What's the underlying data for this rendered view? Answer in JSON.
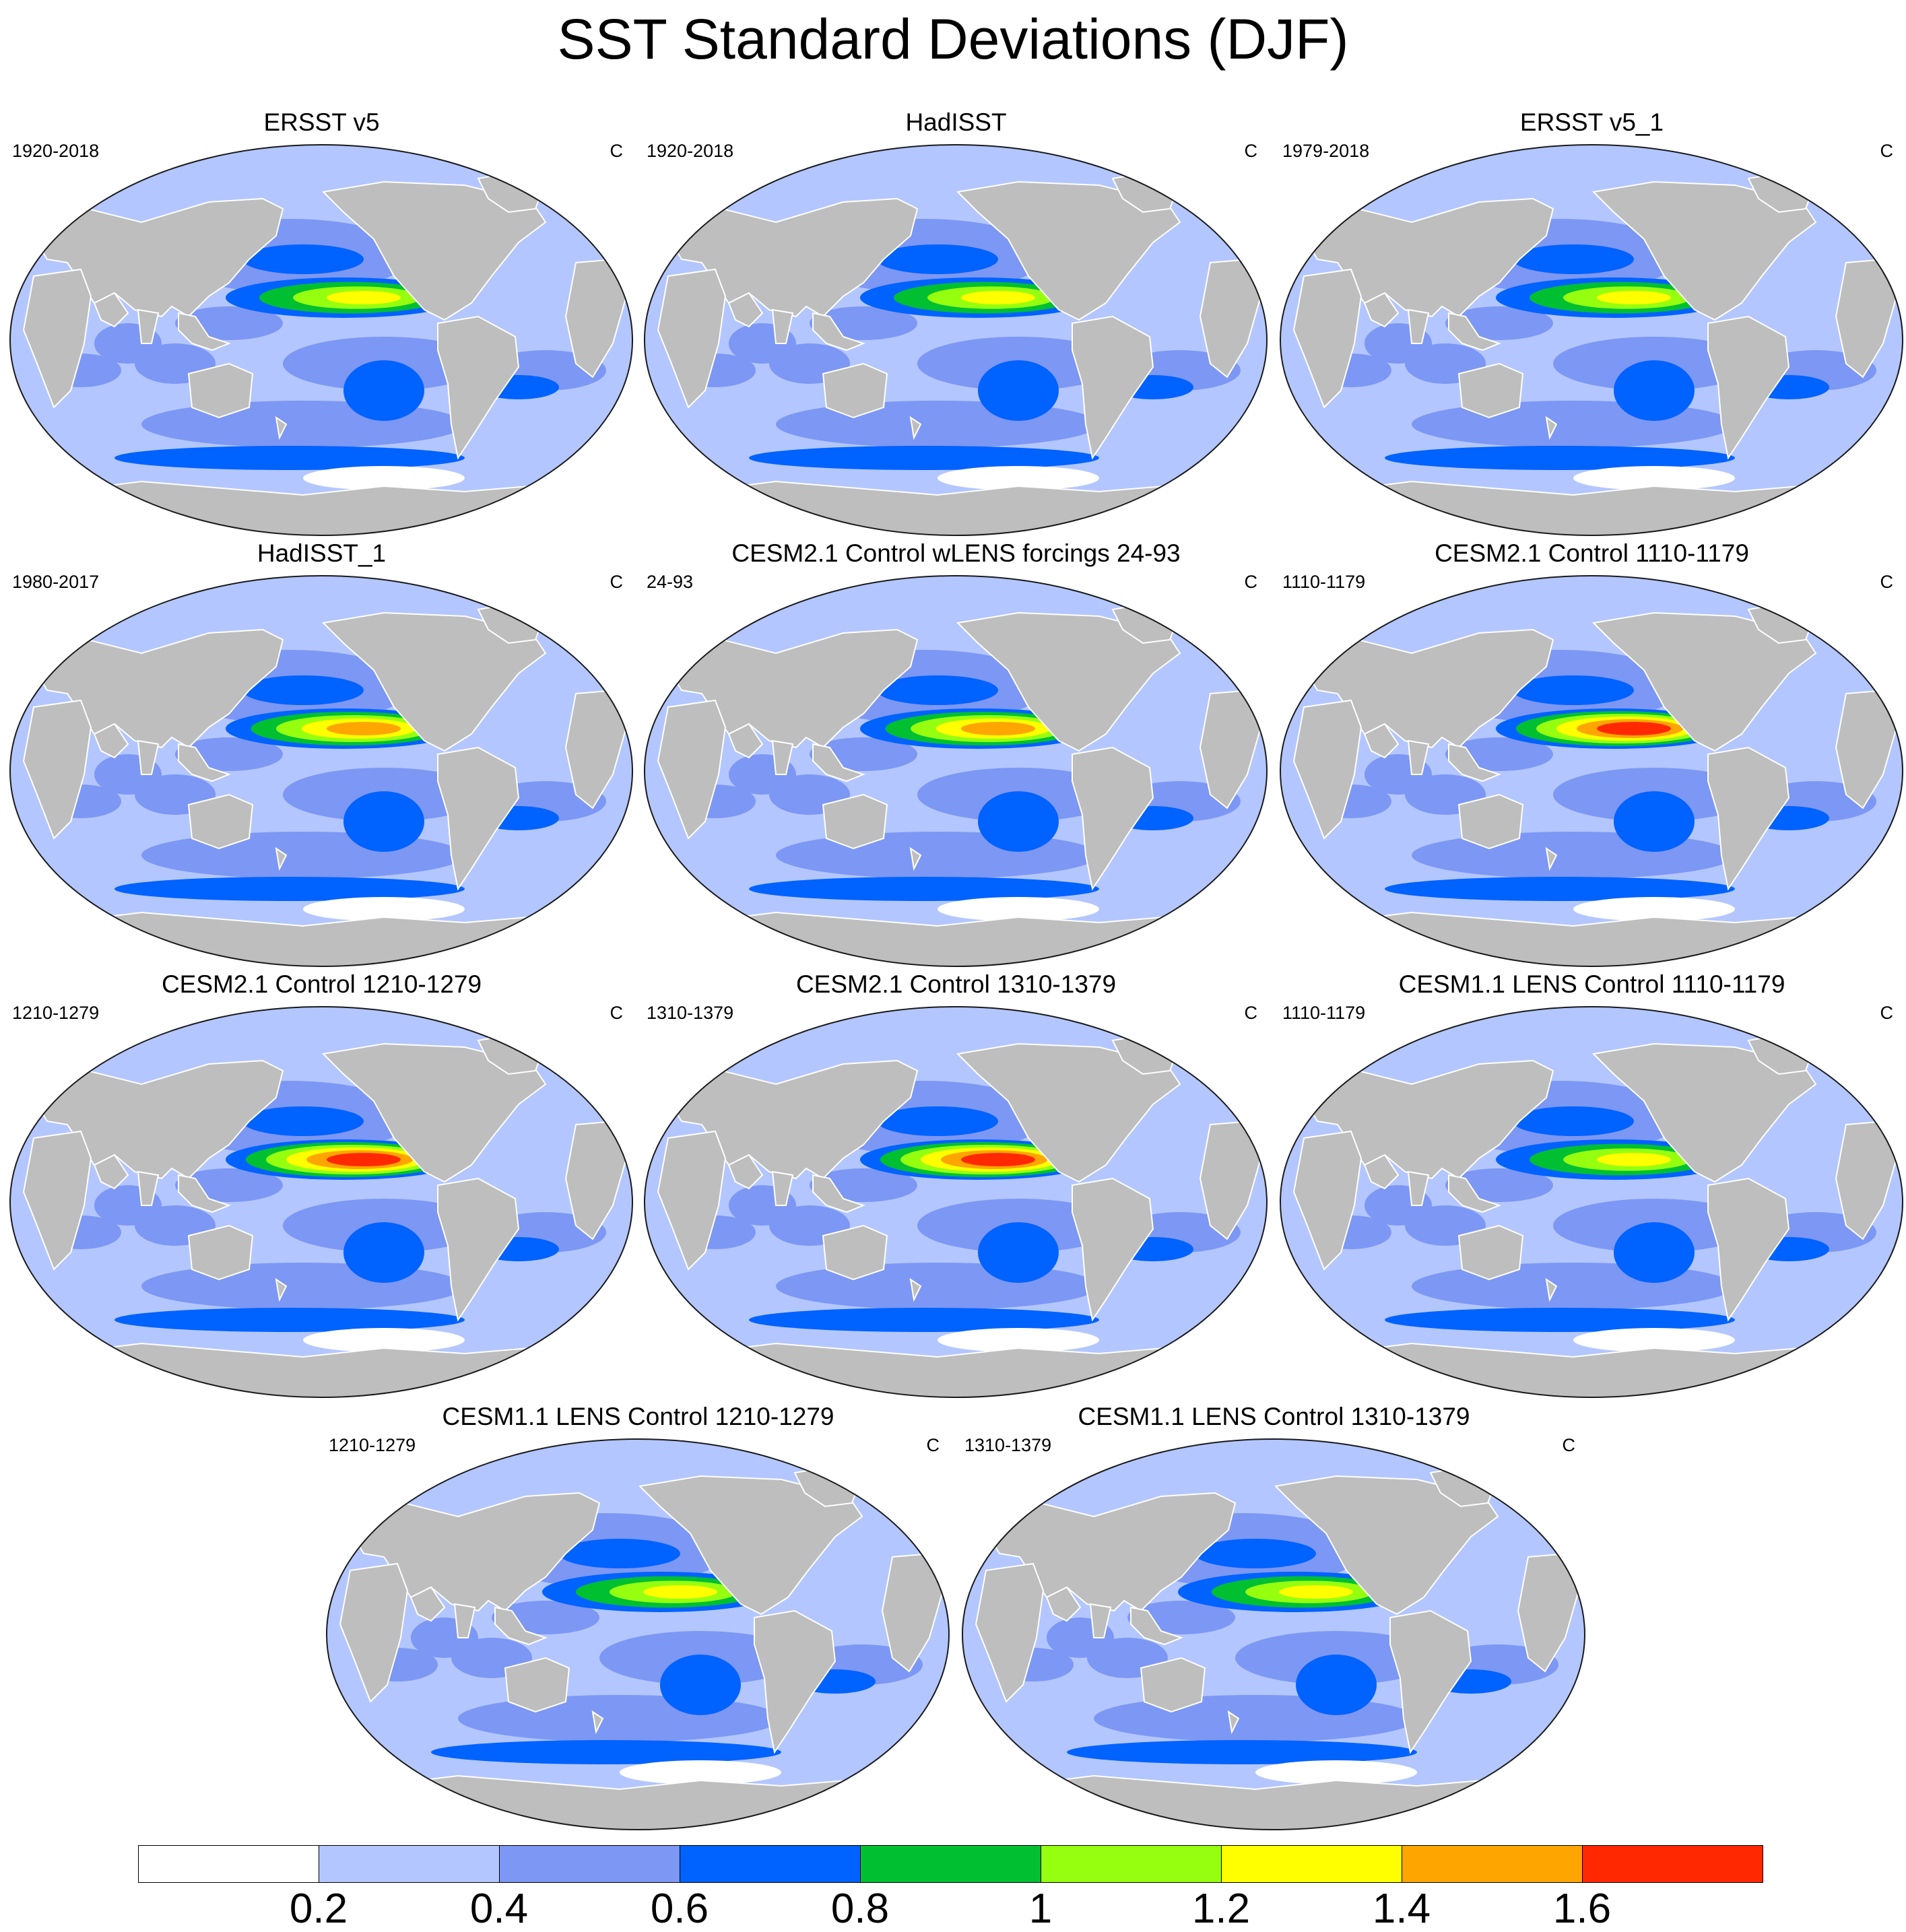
{
  "title": "SST Standard Deviations (DJF)",
  "colors": {
    "land": "#bebebe",
    "outline": "#1a1a1a",
    "levels": [
      "#ffffff",
      "#b3c6ff",
      "#7d97f4",
      "#0062ff",
      "#00c032",
      "#96ff0f",
      "#ffff00",
      "#ffa500",
      "#ff2800"
    ]
  },
  "panels": [
    {
      "title": "ERSST v5",
      "period": "1920-2018",
      "unit": "C",
      "enso_peak": 1.2
    },
    {
      "title": "HadISST",
      "period": "1920-2018",
      "unit": "C",
      "enso_peak": 1.2
    },
    {
      "title": "ERSST v5_1",
      "period": "1979-2018",
      "unit": "C",
      "enso_peak": 1.2
    },
    {
      "title": "HadISST_1",
      "period": "1980-2017",
      "unit": "C",
      "enso_peak": 1.4
    },
    {
      "title": "CESM2.1 Control wLENS forcings 24-93",
      "period": "24-93",
      "unit": "C",
      "enso_peak": 1.4
    },
    {
      "title": "CESM2.1 Control 1110-1179",
      "period": "1110-1179",
      "unit": "C",
      "enso_peak": 1.6
    },
    {
      "title": "CESM2.1 Control 1210-1279",
      "period": "1210-1279",
      "unit": "C",
      "enso_peak": 1.6
    },
    {
      "title": "CESM2.1 Control 1310-1379",
      "period": "1310-1379",
      "unit": "C",
      "enso_peak": 1.6
    },
    {
      "title": "CESM1.1 LENS Control 1110-1179",
      "period": "1110-1179",
      "unit": "C",
      "enso_peak": 1.2
    },
    {
      "title": "CESM1.1 LENS Control 1210-1279",
      "period": "1210-1279",
      "unit": "C",
      "enso_peak": 1.2
    },
    {
      "title": "CESM1.1 LENS Control 1310-1379",
      "period": "1310-1379",
      "unit": "C",
      "enso_peak": 1.2
    }
  ],
  "colorbar": {
    "labels": [
      "0.2",
      "0.4",
      "0.6",
      "0.8",
      "1",
      "1.2",
      "1.4",
      "1.6"
    ]
  }
}
